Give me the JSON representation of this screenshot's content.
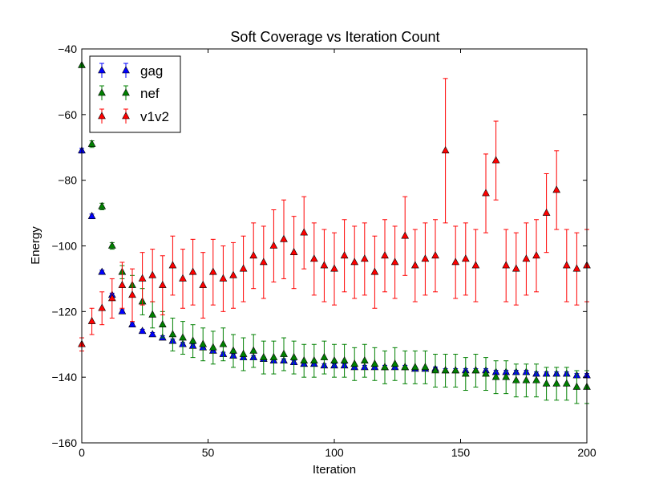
{
  "chart_data": {
    "type": "scatter",
    "title": "Soft Coverage vs Iteration Count",
    "xlabel": "Iteration",
    "ylabel": "Energy",
    "xlim": [
      0,
      200
    ],
    "ylim": [
      -160,
      -40
    ],
    "xticks": [
      0,
      50,
      100,
      150,
      200
    ],
    "yticks": [
      -160,
      -140,
      -120,
      -100,
      -80,
      -60,
      -40
    ],
    "xtick_labels": [
      "0",
      "50",
      "100",
      "150",
      "200"
    ],
    "ytick_labels": [
      "−160",
      "−140",
      "−120",
      "−100",
      "−80",
      "−60",
      "−40"
    ],
    "grid": false,
    "legend_position": "top-left",
    "marker": "triangle-up",
    "error_bars": true,
    "series": [
      {
        "name": "gag",
        "color": "#0000ff",
        "x": [
          0,
          4,
          8,
          12,
          16,
          20,
          24,
          28,
          32,
          36,
          40,
          44,
          48,
          52,
          56,
          60,
          64,
          68,
          72,
          76,
          80,
          84,
          88,
          92,
          96,
          100,
          104,
          108,
          112,
          116,
          120,
          124,
          128,
          132,
          136,
          140,
          144,
          148,
          152,
          156,
          160,
          164,
          168,
          172,
          176,
          180,
          184,
          188,
          192,
          196,
          200
        ],
        "y": [
          -71,
          -91,
          -108,
          -115,
          -120,
          -124,
          -126,
          -127,
          -128,
          -129,
          -130,
          -130.5,
          -131,
          -132,
          -133,
          -133.5,
          -134,
          -134,
          -134.5,
          -135,
          -135,
          -135.5,
          -136,
          -136,
          -136.5,
          -136.5,
          -136.5,
          -137,
          -137,
          -137,
          -137,
          -137,
          -137,
          -137.5,
          -137.5,
          -137.5,
          -138,
          -138,
          -138,
          -138,
          -138,
          -138.5,
          -138.5,
          -138.5,
          -138.5,
          -139,
          -139,
          -139,
          -139,
          -139.5,
          -139.5
        ],
        "err": [
          0.7,
          0.7,
          0.6,
          0.6,
          0.6,
          0.6,
          0.6,
          0.6,
          0.6,
          0.6,
          0.6,
          0.6,
          0.6,
          0.6,
          0.6,
          0.6,
          0.6,
          0.6,
          0.6,
          0.6,
          0.6,
          0.6,
          0.6,
          0.6,
          0.6,
          0.6,
          0.6,
          0.6,
          0.6,
          0.6,
          0.6,
          0.6,
          0.6,
          0.6,
          0.6,
          0.6,
          0.6,
          0.6,
          0.6,
          0.6,
          0.6,
          0.6,
          0.6,
          0.6,
          0.6,
          0.6,
          0.6,
          0.6,
          0.6,
          0.6,
          0.6
        ]
      },
      {
        "name": "nef",
        "color": "#008000",
        "x": [
          0,
          4,
          8,
          12,
          16,
          20,
          24,
          28,
          32,
          36,
          40,
          44,
          48,
          52,
          56,
          60,
          64,
          68,
          72,
          76,
          80,
          84,
          88,
          92,
          96,
          100,
          104,
          108,
          112,
          116,
          120,
          124,
          128,
          132,
          136,
          140,
          144,
          148,
          152,
          156,
          160,
          164,
          168,
          172,
          176,
          180,
          184,
          188,
          192,
          196,
          200
        ],
        "y": [
          -45,
          -69,
          -88,
          -100,
          -108,
          -112,
          -117,
          -121,
          -124,
          -127,
          -128,
          -129,
          -130,
          -131,
          -130,
          -132,
          -133,
          -132,
          -134,
          -134,
          -133,
          -134,
          -135,
          -135,
          -134,
          -135,
          -135,
          -136,
          -135,
          -136,
          -137,
          -136,
          -137,
          -137,
          -137,
          -138,
          -138,
          -138,
          -139,
          -138,
          -139,
          -140,
          -140,
          -141,
          -141,
          -141,
          -142,
          -142,
          -142,
          -143,
          -143
        ],
        "err": [
          0,
          1,
          1,
          1,
          2,
          3,
          4,
          4,
          4,
          5,
          5,
          5,
          5,
          5,
          5,
          5,
          5,
          5,
          5,
          5,
          5,
          5,
          5,
          5,
          5,
          5,
          5,
          5,
          5,
          5,
          5,
          5,
          5,
          5,
          5,
          5,
          5,
          5,
          5,
          5,
          5,
          5,
          5,
          5,
          5,
          5,
          5,
          5,
          5,
          5,
          5
        ]
      },
      {
        "name": "v1v2",
        "color": "#ff0000",
        "x": [
          0,
          4,
          8,
          12,
          16,
          20,
          24,
          28,
          32,
          36,
          40,
          44,
          48,
          52,
          56,
          60,
          64,
          68,
          72,
          76,
          80,
          84,
          88,
          92,
          96,
          100,
          104,
          108,
          112,
          116,
          120,
          124,
          128,
          132,
          136,
          140,
          144,
          148,
          152,
          156,
          160,
          164,
          168,
          172,
          176,
          180,
          184,
          188,
          192,
          196,
          200
        ],
        "y": [
          -130,
          -123,
          -119,
          -116,
          -112,
          -115,
          -110,
          -109,
          -112,
          -106,
          -110,
          -108,
          -112,
          -108,
          -110,
          -109,
          -107,
          -103,
          -105,
          -100,
          -98,
          -102,
          -96,
          -104,
          -106,
          -107,
          -103,
          -105,
          -104,
          -108,
          -103,
          -105,
          -97,
          -106,
          -104,
          -103,
          -71,
          -105,
          -104,
          -106,
          -84,
          -74,
          -106,
          -107,
          -104,
          -103,
          -90,
          -83,
          -106,
          -107,
          -106
        ],
        "err": [
          2,
          4,
          5,
          6,
          7,
          8,
          8,
          8,
          9,
          9,
          9,
          10,
          10,
          10,
          10,
          10,
          10,
          10,
          11,
          11,
          12,
          11,
          11,
          11,
          11,
          11,
          11,
          11,
          11,
          11,
          11,
          11,
          12,
          11,
          11,
          11,
          22,
          11,
          11,
          11,
          12,
          12,
          11,
          11,
          11,
          11,
          12,
          12,
          11,
          11,
          11
        ]
      }
    ]
  }
}
